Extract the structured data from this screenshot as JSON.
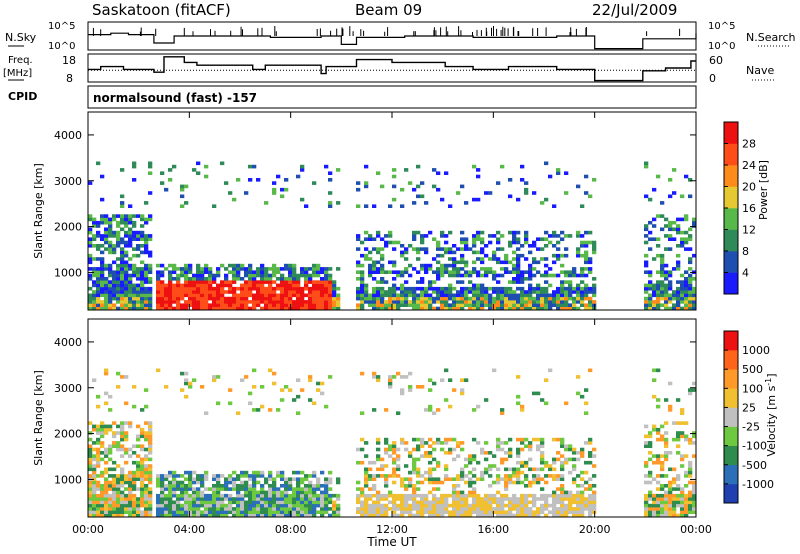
{
  "header": {
    "station": "Saskatoon (fitACF)",
    "beam": "Beam 09",
    "date": "22/Jul/2009"
  },
  "noise_panel": {
    "left_label": "N.Sky",
    "right_label": "N.Search",
    "ticks": [
      "10^5",
      "10^0"
    ]
  },
  "freq_panel": {
    "left_label_1": "Freq.",
    "left_label_2": "[MHz]",
    "right_label": "Nave",
    "left_ticks": [
      "18",
      "8"
    ],
    "right_ticks": [
      "60",
      "0"
    ]
  },
  "cpid": {
    "label": "CPID",
    "value": "normalsound (fast) -157"
  },
  "colors": {
    "power_scale": [
      "#1a1aff",
      "#1e4fb0",
      "#2f8a5a",
      "#59b84a",
      "#e6c832",
      "#ff8c1a",
      "#ff4d1a",
      "#ee1111"
    ],
    "velocity_scale": [
      "#2040b0",
      "#2a6fb8",
      "#2e8c4e",
      "#6ec840",
      "#c0c0c0",
      "#f0c030",
      "#ff9a2a",
      "#ff6418",
      "#ee1111"
    ]
  },
  "chart_data": [
    {
      "type": "heatmap",
      "name": "power",
      "ylabel": "Slant Range [km]",
      "ylim": [
        180,
        4500
      ],
      "yticks": [
        "1000",
        "2000",
        "3000",
        "4000"
      ],
      "xticks": [
        "00:00",
        "04:00",
        "08:00",
        "12:00",
        "16:00",
        "20:00",
        "00:00"
      ],
      "xlim_hours": [
        0,
        24
      ],
      "colorbar": {
        "label": "Power [dB]",
        "ticks": [
          "4",
          "8",
          "12",
          "16",
          "20",
          "24",
          "28"
        ]
      },
      "data_gaps_hours": [
        [
          2.6,
          2.65
        ],
        [
          10.0,
          10.6
        ],
        [
          20.0,
          21.9
        ]
      ]
    },
    {
      "type": "heatmap",
      "name": "velocity",
      "ylabel": "Slant Range [km]",
      "ylim": [
        180,
        4500
      ],
      "yticks": [
        "1000",
        "2000",
        "3000",
        "4000"
      ],
      "xticks": [
        "00:00",
        "04:00",
        "08:00",
        "12:00",
        "16:00",
        "20:00",
        "00:00"
      ],
      "xlabel": "Time UT",
      "xlim_hours": [
        0,
        24
      ],
      "colorbar": {
        "label": "Velocity [m s",
        "label_sup": "-1",
        "label_end": "]",
        "ticks": [
          "1000",
          "500",
          "100",
          "25",
          "-25",
          "-100",
          "-500",
          "-1000"
        ]
      },
      "data_gaps_hours": [
        [
          2.6,
          2.65
        ],
        [
          10.0,
          10.6
        ],
        [
          20.0,
          21.9
        ]
      ]
    }
  ]
}
